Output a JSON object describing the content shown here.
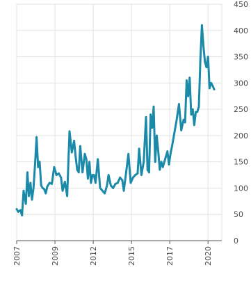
{
  "chart_data": {
    "type": "line",
    "title": "",
    "xlabel": "",
    "ylabel": "",
    "xlim": [
      2007.0,
      2020.4
    ],
    "ylim": [
      0,
      450
    ],
    "grid": true,
    "line_color": "#1a8aa8",
    "y_ticks": [
      {
        "value": 0,
        "label": "0"
      },
      {
        "value": 50,
        "label": "50"
      },
      {
        "value": 100,
        "label": "100"
      },
      {
        "value": 150,
        "label": "150"
      },
      {
        "value": 200,
        "label": "200"
      },
      {
        "value": 250,
        "label": "250"
      },
      {
        "value": 300,
        "label": "300"
      },
      {
        "value": 350,
        "label": "350"
      },
      {
        "value": 400,
        "label": "400"
      },
      {
        "value": 450,
        "label": "450"
      }
    ],
    "x_ticks": [
      {
        "value": 2007.0,
        "label": "2007"
      },
      {
        "value": 2009.5,
        "label": "2009"
      },
      {
        "value": 2012.0,
        "label": "2012"
      },
      {
        "value": 2014.5,
        "label": "2015"
      },
      {
        "value": 2017.0,
        "label": "2017"
      },
      {
        "value": 2019.5,
        "label": "2020"
      }
    ],
    "series": [
      {
        "x": [
          2007.0,
          2007.1,
          2007.25,
          2007.35,
          2007.45,
          2007.6,
          2007.7,
          2007.8,
          2007.9,
          2008.0,
          2008.1,
          2008.2,
          2008.3,
          2008.4,
          2008.5,
          2008.6,
          2008.7,
          2008.8,
          2008.9,
          2009.0,
          2009.15,
          2009.3,
          2009.45,
          2009.6,
          2009.75,
          2009.9,
          2010.0,
          2010.15,
          2010.3,
          2010.45,
          2010.6,
          2010.75,
          2010.85,
          2010.95,
          2011.05,
          2011.15,
          2011.3,
          2011.45,
          2011.55,
          2011.65,
          2011.75,
          2011.85,
          2011.95,
          2012.05,
          2012.15,
          2012.3,
          2012.45,
          2012.6,
          2012.75,
          2012.9,
          2013.0,
          2013.15,
          2013.3,
          2013.45,
          2013.6,
          2013.75,
          2013.9,
          2014.0,
          2014.15,
          2014.3,
          2014.45,
          2014.6,
          2014.75,
          2014.9,
          2015.0,
          2015.15,
          2015.3,
          2015.45,
          2015.55,
          2015.65,
          2015.75,
          2015.85,
          2015.95,
          2016.05,
          2016.15,
          2016.25,
          2016.35,
          2016.45,
          2016.55,
          2016.65,
          2016.75,
          2016.85,
          2016.95,
          2017.05,
          2017.15,
          2017.3,
          2017.45,
          2017.6,
          2017.75,
          2017.9,
          2018.0,
          2018.1,
          2018.2,
          2018.3,
          2018.4,
          2018.5,
          2018.6,
          2018.7,
          2018.8,
          2018.9,
          2019.0,
          2019.1,
          2019.2,
          2019.3,
          2019.4,
          2019.5,
          2019.6,
          2019.7,
          2019.8,
          2019.9
        ],
        "values": [
          60,
          55,
          58,
          48,
          95,
          70,
          130,
          85,
          110,
          78,
          100,
          145,
          197,
          140,
          150,
          105,
          100,
          98,
          90,
          103,
          110,
          108,
          140,
          125,
          128,
          120,
          95,
          112,
          85,
          208,
          168,
          190,
          160,
          135,
          130,
          180,
          130,
          165,
          155,
          118,
          150,
          110,
          125,
          125,
          110,
          155,
          100,
          95,
          90,
          105,
          125,
          105,
          100,
          108,
          110,
          120,
          115,
          95,
          130,
          165,
          110,
          120,
          125,
          128,
          175,
          125,
          150,
          235,
          135,
          130,
          240,
          215,
          255,
          150,
          200,
          170,
          135,
          150,
          140,
          150,
          160,
          170,
          145,
          165,
          180,
          205,
          230,
          260,
          210,
          230,
          225,
          305,
          275,
          310,
          240,
          250,
          220,
          245,
          245,
          255,
          345,
          410,
          370,
          340,
          330,
          350,
          290,
          300,
          295,
          288
        ]
      }
    ]
  }
}
